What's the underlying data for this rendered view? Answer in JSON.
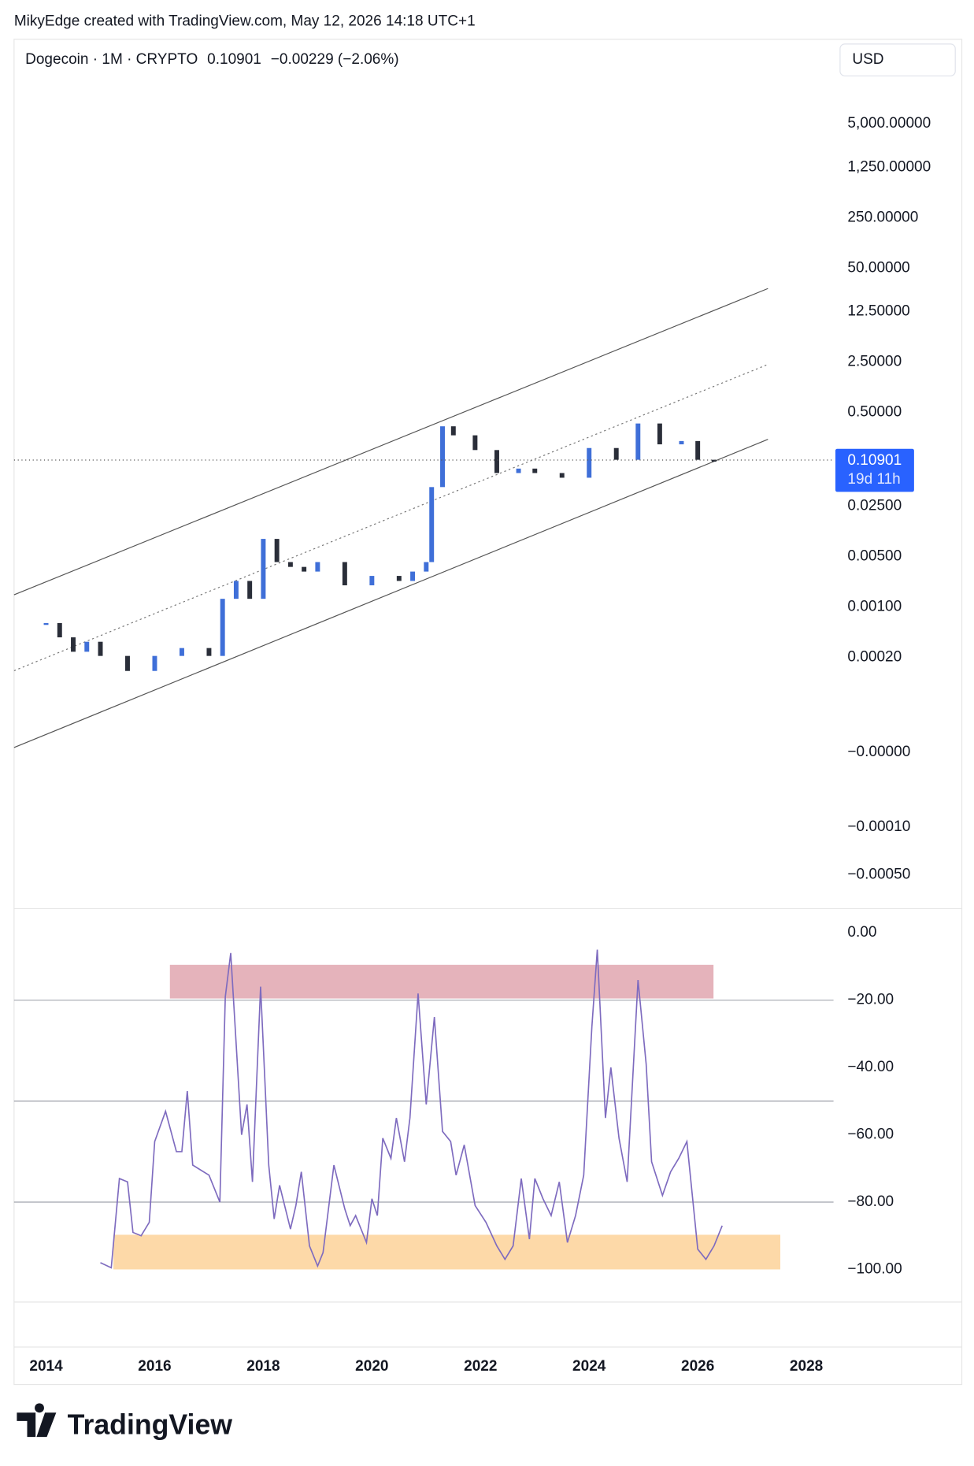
{
  "header": {
    "attribution": "MikyEdge created with TradingView.com, May 12, 2026 14:18 UTC+1",
    "currency": "USD"
  },
  "chart_data": [
    {
      "type": "candlestick",
      "symbol": "Dogecoin · 1M · CRYPTO",
      "last_price": 0.10901,
      "change": "−0.00229 (−2.06%)",
      "countdown": "19d 11h",
      "log_scale": true,
      "up_color": "#3f6fd8",
      "down_color": "#2a2e39",
      "x": [
        2014.0,
        2014.25,
        2014.5,
        2014.75,
        2015.0,
        2015.5,
        2016.0,
        2016.5,
        2017.0,
        2017.25,
        2017.5,
        2017.75,
        2018.0,
        2018.25,
        2018.5,
        2018.75,
        2019.0,
        2019.5,
        2020.0,
        2020.5,
        2020.75,
        2021.0,
        2021.1,
        2021.3,
        2021.5,
        2021.9,
        2022.3,
        2022.7,
        2023.0,
        2023.5,
        2024.0,
        2024.5,
        2024.9,
        2025.3,
        2025.7,
        2026.0,
        2026.3
      ],
      "values": [
        0.0006,
        0.00038,
        0.00024,
        0.00033,
        0.00021,
        0.00013,
        0.00021,
        0.00027,
        0.00021,
        0.0013,
        0.0023,
        0.0013,
        0.0088,
        0.0042,
        0.0036,
        0.0031,
        0.0042,
        0.002,
        0.0027,
        0.0023,
        0.0031,
        0.0042,
        0.046,
        0.32,
        0.24,
        0.15,
        0.072,
        0.083,
        0.072,
        0.062,
        0.16,
        0.11,
        0.35,
        0.18,
        0.2,
        0.11,
        0.10901
      ],
      "xlim": [
        2013.41,
        2028.5
      ],
      "ylim": [
        7e-08,
        74000
      ],
      "yticks": [
        {
          "value": 5000,
          "label": "5,000.00000"
        },
        {
          "value": 1250,
          "label": "1,250.00000"
        },
        {
          "value": 250,
          "label": "250.00000"
        },
        {
          "value": 50,
          "label": "50.00000"
        },
        {
          "value": 12.5,
          "label": "12.50000"
        },
        {
          "value": 2.5,
          "label": "2.50000"
        },
        {
          "value": 0.5,
          "label": "0.50000"
        },
        {
          "value": 0.025,
          "label": "0.02500"
        },
        {
          "value": 0.005,
          "label": "0.00500"
        },
        {
          "value": 0.001,
          "label": "0.00100"
        },
        {
          "value": 0.0002,
          "label": "0.00020"
        }
      ],
      "extra_labels": [
        "−0.00000",
        "−0.00010",
        "−0.00050"
      ]
    },
    {
      "type": "line",
      "color": "#7e6bbf",
      "x": [
        2015.0,
        2015.2,
        2015.35,
        2015.5,
        2015.6,
        2015.75,
        2015.9,
        2016.0,
        2016.2,
        2016.4,
        2016.5,
        2016.6,
        2016.7,
        2017.0,
        2017.2,
        2017.3,
        2017.4,
        2017.6,
        2017.7,
        2017.8,
        2017.95,
        2018.1,
        2018.2,
        2018.3,
        2018.5,
        2018.6,
        2018.7,
        2018.85,
        2019.0,
        2019.1,
        2019.3,
        2019.5,
        2019.6,
        2019.7,
        2019.9,
        2020.0,
        2020.1,
        2020.2,
        2020.35,
        2020.45,
        2020.6,
        2020.7,
        2020.85,
        2021.0,
        2021.15,
        2021.3,
        2021.45,
        2021.55,
        2021.7,
        2021.9,
        2022.1,
        2022.3,
        2022.45,
        2022.6,
        2022.75,
        2022.9,
        2023.0,
        2023.15,
        2023.3,
        2023.45,
        2023.6,
        2023.75,
        2023.9,
        2024.05,
        2024.15,
        2024.3,
        2024.4,
        2024.55,
        2024.7,
        2024.9,
        2025.05,
        2025.15,
        2025.35,
        2025.5,
        2025.65,
        2025.8,
        2026.0,
        2026.15,
        2026.3,
        2026.45
      ],
      "values": [
        -98,
        -99.5,
        -73,
        -74,
        -89,
        -90,
        -86,
        -62,
        -53,
        -65,
        -65,
        -47,
        -69,
        -72,
        -80,
        -19,
        -6,
        -60,
        -51,
        -74,
        -16,
        -69,
        -85,
        -75,
        -88,
        -81,
        -71,
        -93,
        -99,
        -95,
        -69,
        -82,
        -87,
        -84,
        -92,
        -79,
        -84,
        -61,
        -67,
        -55,
        -68,
        -55,
        -18,
        -51,
        -25,
        -59,
        -62,
        -72,
        -63,
        -81,
        -86,
        -93,
        -97,
        -93,
        -73,
        -91,
        -73,
        -79,
        -84,
        -74,
        -92,
        -84,
        -72,
        -28,
        -5,
        -55,
        -40,
        -61,
        -74,
        -14,
        -39,
        -68,
        -78,
        -71,
        -67,
        -62,
        -94,
        -97,
        -93,
        -87
      ],
      "xlim": [
        2013.41,
        2028.5
      ],
      "ylim": [
        -109.7,
        7.2
      ],
      "yticks": [
        {
          "value": 0,
          "label": "0.00"
        },
        {
          "value": -20,
          "label": "−20.00"
        },
        {
          "value": -40,
          "label": "−40.00"
        },
        {
          "value": -60,
          "label": "−60.00"
        },
        {
          "value": -80,
          "label": "−80.00"
        },
        {
          "value": -100,
          "label": "−100.00"
        }
      ],
      "levels": [
        -20,
        -50,
        -80
      ],
      "zones": [
        {
          "color": "#e5b3bb",
          "x": [
            2016.28,
            2026.29
          ],
          "y": [
            -9.5,
            -19.5
          ]
        },
        {
          "color": "#fdd9a8",
          "x": [
            2015.24,
            2027.52
          ],
          "y": [
            -89.7,
            -100
          ]
        }
      ],
      "xticks": [
        2014,
        2016,
        2018,
        2020,
        2022,
        2024,
        2026,
        2028
      ]
    }
  ],
  "footer": {
    "brand": "TradingView"
  }
}
